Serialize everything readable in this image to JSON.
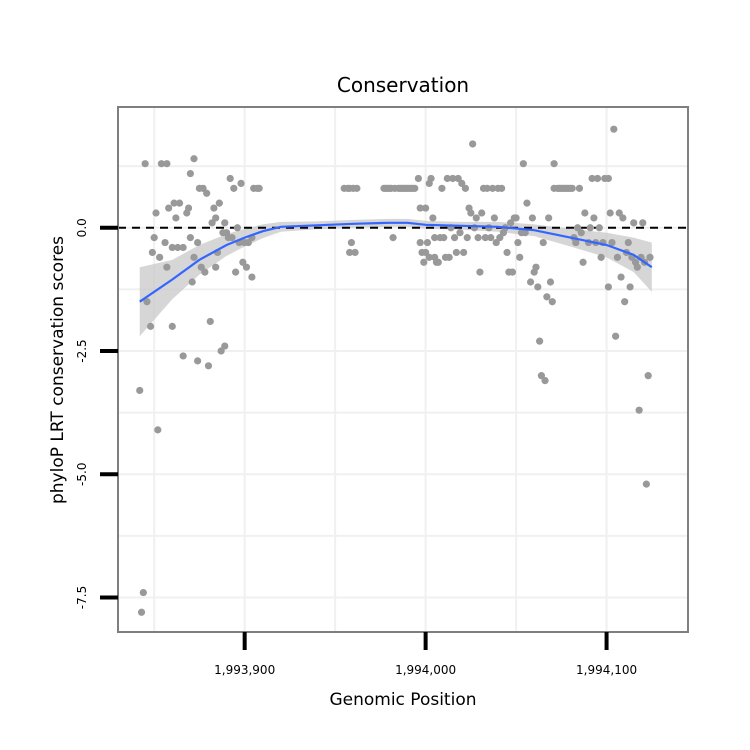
{
  "chart_data": {
    "type": "scatter",
    "title": "Conservation",
    "xlabel": "Genomic Position",
    "ylabel": "phyloP LRT conservation scores",
    "xlim": [
      1993830,
      1994145
    ],
    "ylim": [
      -8.2,
      2.45
    ],
    "x_ticks": [
      {
        "value": 1993900,
        "label": "1,993,900"
      },
      {
        "value": 1994000,
        "label": "1,994,000"
      },
      {
        "value": 1994100,
        "label": "1,994,100"
      }
    ],
    "y_ticks": [
      {
        "value": 0,
        "label": "0.0"
      },
      {
        "value": -2.5,
        "label": "-2.5"
      },
      {
        "value": -5,
        "label": "-5.0"
      },
      {
        "value": -7.5,
        "label": "-7.5"
      }
    ],
    "grid": true,
    "reference_line": {
      "y": 0,
      "style": "dashed"
    },
    "colors": {
      "points": "#999999",
      "smooth_line": "#3366ff",
      "confidence_band": "#c8c8c8",
      "panel_border": "#7f7f7f",
      "grid": "#f0f0f0"
    },
    "points": [
      {
        "x": 1993842,
        "y": -3.3
      },
      {
        "x": 1993843,
        "y": -7.8
      },
      {
        "x": 1993844,
        "y": -7.4
      },
      {
        "x": 1993845,
        "y": 1.3
      },
      {
        "x": 1993846,
        "y": -1.5
      },
      {
        "x": 1993848,
        "y": -2.0
      },
      {
        "x": 1993849,
        "y": -0.5
      },
      {
        "x": 1993850,
        "y": -0.2
      },
      {
        "x": 1993851,
        "y": 0.3
      },
      {
        "x": 1993852,
        "y": -4.1
      },
      {
        "x": 1993853,
        "y": -0.6
      },
      {
        "x": 1993854,
        "y": 1.3
      },
      {
        "x": 1993856,
        "y": -0.3
      },
      {
        "x": 1993857,
        "y": 1.3
      },
      {
        "x": 1993857,
        "y": -0.8
      },
      {
        "x": 1993858,
        "y": 0.4
      },
      {
        "x": 1993860,
        "y": -2.0
      },
      {
        "x": 1993860,
        "y": -0.4
      },
      {
        "x": 1993861,
        "y": 0.5
      },
      {
        "x": 1993862,
        "y": 0.2
      },
      {
        "x": 1993863,
        "y": -0.4
      },
      {
        "x": 1993864,
        "y": 0.5
      },
      {
        "x": 1993866,
        "y": -2.6
      },
      {
        "x": 1993866,
        "y": -0.4
      },
      {
        "x": 1993868,
        "y": 0.3
      },
      {
        "x": 1993869,
        "y": 0.4
      },
      {
        "x": 1993870,
        "y": -0.2
      },
      {
        "x": 1993870,
        "y": 1.1
      },
      {
        "x": 1993871,
        "y": -1.1
      },
      {
        "x": 1993872,
        "y": 1.4
      },
      {
        "x": 1993872,
        "y": -0.6
      },
      {
        "x": 1993874,
        "y": -2.7
      },
      {
        "x": 1993874,
        "y": -0.3
      },
      {
        "x": 1993875,
        "y": 0.8
      },
      {
        "x": 1993876,
        "y": -0.8
      },
      {
        "x": 1993877,
        "y": 0.8
      },
      {
        "x": 1993878,
        "y": -0.9
      },
      {
        "x": 1993879,
        "y": 0.7
      },
      {
        "x": 1993880,
        "y": -2.8
      },
      {
        "x": 1993881,
        "y": -1.9
      },
      {
        "x": 1993882,
        "y": 0.1
      },
      {
        "x": 1993883,
        "y": 0.4
      },
      {
        "x": 1993884,
        "y": -0.8
      },
      {
        "x": 1993884,
        "y": 0.2
      },
      {
        "x": 1993885,
        "y": -0.5
      },
      {
        "x": 1993886,
        "y": 0.5
      },
      {
        "x": 1993887,
        "y": -2.5
      },
      {
        "x": 1993888,
        "y": -0.1
      },
      {
        "x": 1993889,
        "y": -2.4
      },
      {
        "x": 1993889,
        "y": 0.1
      },
      {
        "x": 1993890,
        "y": -0.1
      },
      {
        "x": 1993891,
        "y": -0.2
      },
      {
        "x": 1993892,
        "y": 1.0
      },
      {
        "x": 1993893,
        "y": -0.2
      },
      {
        "x": 1993894,
        "y": 0.8
      },
      {
        "x": 1993895,
        "y": -0.9
      },
      {
        "x": 1993896,
        "y": 0.0
      },
      {
        "x": 1993897,
        "y": -0.3
      },
      {
        "x": 1993898,
        "y": 0.9
      },
      {
        "x": 1993899,
        "y": -0.7
      },
      {
        "x": 1993900,
        "y": -0.3
      },
      {
        "x": 1993901,
        "y": -0.8
      },
      {
        "x": 1993902,
        "y": -0.3
      },
      {
        "x": 1993904,
        "y": -1.0
      },
      {
        "x": 1993904,
        "y": -0.2
      },
      {
        "x": 1993905,
        "y": 0.8
      },
      {
        "x": 1993907,
        "y": 0.8
      },
      {
        "x": 1993908,
        "y": 0.8
      },
      {
        "x": 1993955,
        "y": 0.8
      },
      {
        "x": 1993957,
        "y": 0.8
      },
      {
        "x": 1993958,
        "y": -0.5
      },
      {
        "x": 1993958,
        "y": 0.8
      },
      {
        "x": 1993959,
        "y": -0.3
      },
      {
        "x": 1993960,
        "y": 0.8
      },
      {
        "x": 1993961,
        "y": -0.5
      },
      {
        "x": 1993962,
        "y": 0.8
      },
      {
        "x": 1993977,
        "y": 0.8
      },
      {
        "x": 1993978,
        "y": 0.8
      },
      {
        "x": 1993979,
        "y": 0.8
      },
      {
        "x": 1993980,
        "y": 0.8
      },
      {
        "x": 1993981,
        "y": 0.8
      },
      {
        "x": 1993982,
        "y": -0.2
      },
      {
        "x": 1993983,
        "y": 0.8
      },
      {
        "x": 1993985,
        "y": 0.8
      },
      {
        "x": 1993986,
        "y": 0.8
      },
      {
        "x": 1993987,
        "y": 0.8
      },
      {
        "x": 1993988,
        "y": 0.8
      },
      {
        "x": 1993989,
        "y": 0.8
      },
      {
        "x": 1993990,
        "y": 0.8
      },
      {
        "x": 1993991,
        "y": 0.8
      },
      {
        "x": 1993992,
        "y": 0.8
      },
      {
        "x": 1993993,
        "y": 0.8
      },
      {
        "x": 1993994,
        "y": 0.8
      },
      {
        "x": 1993996,
        "y": 1.0
      },
      {
        "x": 1993997,
        "y": 0.4
      },
      {
        "x": 1993997,
        "y": -0.3
      },
      {
        "x": 1993998,
        "y": -0.5
      },
      {
        "x": 1993999,
        "y": -0.7
      },
      {
        "x": 1994000,
        "y": 0.4
      },
      {
        "x": 1994000,
        "y": -0.5
      },
      {
        "x": 1994001,
        "y": -0.3
      },
      {
        "x": 1994002,
        "y": -0.6
      },
      {
        "x": 1994002,
        "y": 0.9
      },
      {
        "x": 1994003,
        "y": 1.0
      },
      {
        "x": 1994004,
        "y": 0.2
      },
      {
        "x": 1994005,
        "y": -0.6
      },
      {
        "x": 1994005,
        "y": -0.2
      },
      {
        "x": 1994006,
        "y": -0.7
      },
      {
        "x": 1994007,
        "y": -0.7
      },
      {
        "x": 1994008,
        "y": -0.2
      },
      {
        "x": 1994009,
        "y": 0.8
      },
      {
        "x": 1994010,
        "y": -0.2
      },
      {
        "x": 1994011,
        "y": -0.6
      },
      {
        "x": 1994012,
        "y": 1.0
      },
      {
        "x": 1994013,
        "y": -0.6
      },
      {
        "x": 1994014,
        "y": 0.0
      },
      {
        "x": 1994015,
        "y": 1.0
      },
      {
        "x": 1994016,
        "y": -0.2
      },
      {
        "x": 1994017,
        "y": -0.5
      },
      {
        "x": 1994018,
        "y": 1.0
      },
      {
        "x": 1994019,
        "y": -0.1
      },
      {
        "x": 1994020,
        "y": 0.9
      },
      {
        "x": 1994021,
        "y": -0.5
      },
      {
        "x": 1994022,
        "y": 0.8
      },
      {
        "x": 1994023,
        "y": -0.2
      },
      {
        "x": 1994024,
        "y": 0.4
      },
      {
        "x": 1994025,
        "y": 0.3
      },
      {
        "x": 1994026,
        "y": 1.7
      },
      {
        "x": 1994027,
        "y": 0.0
      },
      {
        "x": 1994028,
        "y": 0.2
      },
      {
        "x": 1994029,
        "y": -0.2
      },
      {
        "x": 1994030,
        "y": -0.9
      },
      {
        "x": 1994031,
        "y": 0.3
      },
      {
        "x": 1994032,
        "y": 0.8
      },
      {
        "x": 1994033,
        "y": -0.2
      },
      {
        "x": 1994034,
        "y": 0.8
      },
      {
        "x": 1994035,
        "y": 0.0
      },
      {
        "x": 1994036,
        "y": -0.2
      },
      {
        "x": 1994037,
        "y": 0.8
      },
      {
        "x": 1994038,
        "y": 0.2
      },
      {
        "x": 1994039,
        "y": -0.3
      },
      {
        "x": 1994040,
        "y": 0.8
      },
      {
        "x": 1994041,
        "y": -0.2
      },
      {
        "x": 1994042,
        "y": 0.8
      },
      {
        "x": 1994043,
        "y": -0.1
      },
      {
        "x": 1994044,
        "y": 0.0
      },
      {
        "x": 1994045,
        "y": -0.5
      },
      {
        "x": 1994046,
        "y": -0.9
      },
      {
        "x": 1994047,
        "y": 0.1
      },
      {
        "x": 1994048,
        "y": -0.9
      },
      {
        "x": 1994049,
        "y": 0.2
      },
      {
        "x": 1994050,
        "y": 0.2
      },
      {
        "x": 1994051,
        "y": -0.3
      },
      {
        "x": 1994052,
        "y": -0.6
      },
      {
        "x": 1994053,
        "y": -0.1
      },
      {
        "x": 1994054,
        "y": 1.3
      },
      {
        "x": 1994055,
        "y": -0.1
      },
      {
        "x": 1994056,
        "y": 0.5
      },
      {
        "x": 1994058,
        "y": -1.1
      },
      {
        "x": 1994059,
        "y": 0.2
      },
      {
        "x": 1994060,
        "y": -0.9
      },
      {
        "x": 1994061,
        "y": -0.8
      },
      {
        "x": 1994062,
        "y": -1.2
      },
      {
        "x": 1994063,
        "y": -2.3
      },
      {
        "x": 1994064,
        "y": -3.0
      },
      {
        "x": 1994065,
        "y": -0.3
      },
      {
        "x": 1994066,
        "y": -3.1
      },
      {
        "x": 1994067,
        "y": -1.4
      },
      {
        "x": 1994068,
        "y": 0.2
      },
      {
        "x": 1994069,
        "y": -1.1
      },
      {
        "x": 1994070,
        "y": -1.5
      },
      {
        "x": 1994071,
        "y": 1.3
      },
      {
        "x": 1994071,
        "y": 0.8
      },
      {
        "x": 1994073,
        "y": 0.8
      },
      {
        "x": 1994074,
        "y": 0.8
      },
      {
        "x": 1994075,
        "y": 0.8
      },
      {
        "x": 1994076,
        "y": 0.8
      },
      {
        "x": 1994077,
        "y": 0.8
      },
      {
        "x": 1994078,
        "y": 0.8
      },
      {
        "x": 1994079,
        "y": 0.8
      },
      {
        "x": 1994080,
        "y": 0.8
      },
      {
        "x": 1994081,
        "y": 0.8
      },
      {
        "x": 1994082,
        "y": -0.2
      },
      {
        "x": 1994083,
        "y": -0.3
      },
      {
        "x": 1994084,
        "y": 0.0
      },
      {
        "x": 1994085,
        "y": 0.8
      },
      {
        "x": 1994086,
        "y": -0.1
      },
      {
        "x": 1994087,
        "y": -0.7
      },
      {
        "x": 1994088,
        "y": 0.3
      },
      {
        "x": 1994090,
        "y": -0.3
      },
      {
        "x": 1994091,
        "y": 0.0
      },
      {
        "x": 1994092,
        "y": 1.0
      },
      {
        "x": 1994093,
        "y": 0.2
      },
      {
        "x": 1994094,
        "y": -0.3
      },
      {
        "x": 1994095,
        "y": 1.0
      },
      {
        "x": 1994096,
        "y": 0.0
      },
      {
        "x": 1994097,
        "y": -0.6
      },
      {
        "x": 1994098,
        "y": -0.3
      },
      {
        "x": 1994099,
        "y": 1.0
      },
      {
        "x": 1994101,
        "y": 1.0
      },
      {
        "x": 1994101,
        "y": -1.2
      },
      {
        "x": 1994102,
        "y": 0.3
      },
      {
        "x": 1994103,
        "y": -0.3
      },
      {
        "x": 1994104,
        "y": 2.0
      },
      {
        "x": 1994105,
        "y": -2.2
      },
      {
        "x": 1994106,
        "y": -0.6
      },
      {
        "x": 1994107,
        "y": 0.3
      },
      {
        "x": 1994108,
        "y": -1.0
      },
      {
        "x": 1994109,
        "y": 0.2
      },
      {
        "x": 1994110,
        "y": -1.5
      },
      {
        "x": 1994111,
        "y": -0.5
      },
      {
        "x": 1994112,
        "y": -0.3
      },
      {
        "x": 1994113,
        "y": -1.2
      },
      {
        "x": 1994114,
        "y": -0.6
      },
      {
        "x": 1994115,
        "y": 0.1
      },
      {
        "x": 1994116,
        "y": -0.7
      },
      {
        "x": 1994117,
        "y": -0.8
      },
      {
        "x": 1994118,
        "y": -3.7
      },
      {
        "x": 1994119,
        "y": -0.6
      },
      {
        "x": 1994120,
        "y": 0.1
      },
      {
        "x": 1994121,
        "y": -0.7
      },
      {
        "x": 1994122,
        "y": -5.2
      },
      {
        "x": 1994123,
        "y": -3.0
      },
      {
        "x": 1994124,
        "y": -0.6
      }
    ],
    "smooth_line": {
      "x": [
        1993842,
        1993860,
        1993875,
        1993890,
        1993900,
        1993910,
        1993920,
        1993940,
        1993960,
        1993980,
        1993990,
        1994000,
        1994020,
        1994040,
        1994060,
        1994080,
        1994100,
        1994115,
        1994125
      ],
      "y": [
        -1.5,
        -1.05,
        -0.65,
        -0.35,
        -0.2,
        -0.07,
        0.02,
        0.05,
        0.08,
        0.1,
        0.1,
        0.06,
        0.04,
        0.02,
        -0.05,
        -0.2,
        -0.35,
        -0.55,
        -0.8
      ],
      "band_half_width": [
        0.7,
        0.4,
        0.3,
        0.22,
        0.18,
        0.14,
        0.1,
        0.08,
        0.08,
        0.08,
        0.08,
        0.08,
        0.08,
        0.1,
        0.12,
        0.18,
        0.25,
        0.35,
        0.5
      ]
    }
  }
}
